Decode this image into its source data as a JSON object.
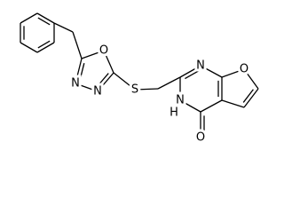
{
  "atoms": {
    "oxadiazole_o": "O",
    "oxadiazole_n_left": "N",
    "oxadiazole_n_right": "N",
    "sulfur": "S",
    "pyrimidine_n": "N",
    "pyrimidine_nh_n": "N",
    "pyrimidine_nh_h": "H",
    "carbonyl_o": "O",
    "furan_o": "O"
  }
}
